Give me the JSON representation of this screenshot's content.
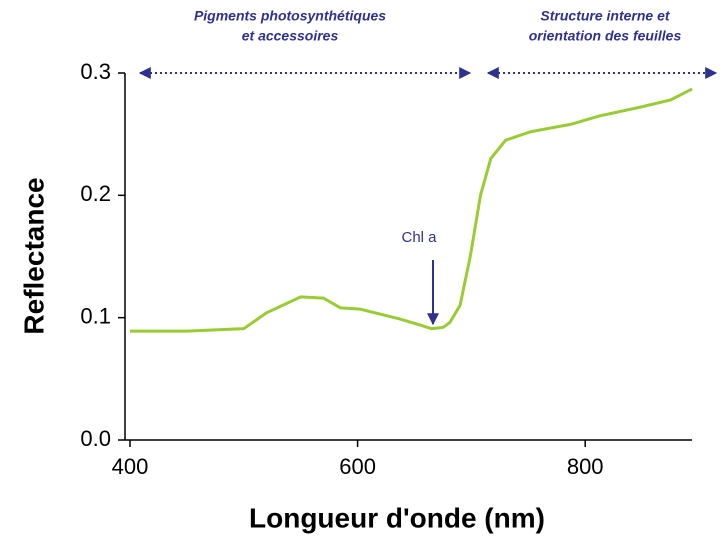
{
  "chart_data": {
    "type": "line",
    "xlabel": "Longueur d'onde (nm)",
    "ylabel": "Reflectance",
    "x": [
      400,
      450,
      500,
      520,
      550,
      570,
      585,
      602,
      628,
      637,
      655,
      665,
      675,
      681,
      690,
      699,
      708,
      717,
      730,
      752,
      787,
      813,
      848,
      875,
      894
    ],
    "series": [
      {
        "name": "Reflectance",
        "color": "#99cc33",
        "values": [
          0.089,
          0.089,
          0.091,
          0.104,
          0.117,
          0.116,
          0.108,
          0.107,
          0.101,
          0.099,
          0.094,
          0.091,
          0.092,
          0.096,
          0.11,
          0.15,
          0.2,
          0.23,
          0.245,
          0.252,
          0.258,
          0.265,
          0.272,
          0.278,
          0.287
        ]
      }
    ],
    "xlim": [
      400,
      900
    ],
    "ylim": [
      0,
      0.3
    ],
    "xticks": [
      400,
      600,
      800
    ],
    "yticks": [
      {
        "value": 0,
        "label": "0.0"
      },
      0.1,
      0.2,
      0.3
    ],
    "annotations": [
      {
        "lines": [
          "Pigments photosynthétiques",
          "et accessoires"
        ]
      },
      {
        "lines": [
          "Structure interne et",
          "orientation des feuilles"
        ]
      },
      {
        "text": "Chl a"
      }
    ]
  }
}
